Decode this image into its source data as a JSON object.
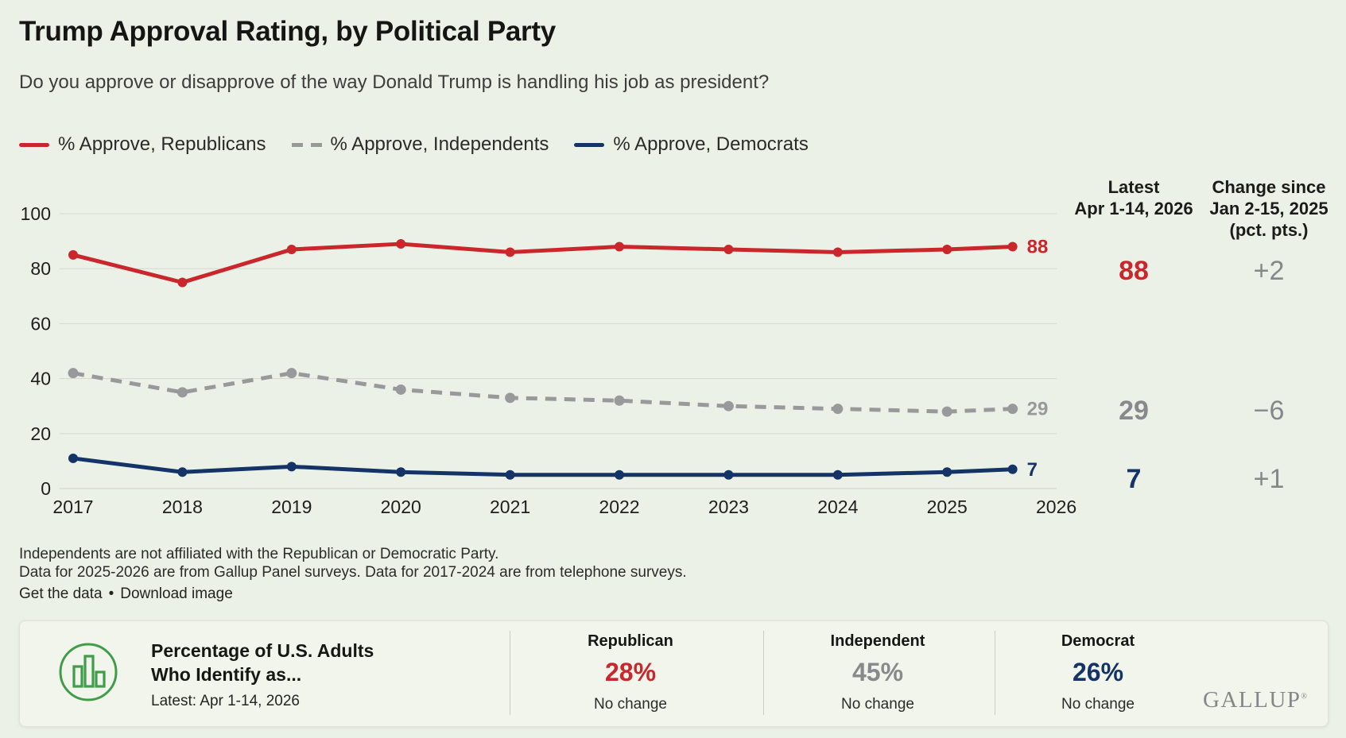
{
  "title": "Trump Approval Rating, by Political Party",
  "subtitle": "Do you approve or disapprove of the way Donald Trump is handling his job as president?",
  "legend": [
    {
      "label": "% Approve, Republicans",
      "color": "#c9272b",
      "style": "solid"
    },
    {
      "label": "% Approve, Independents",
      "color": "#97999b",
      "style": "dashed"
    },
    {
      "label": "% Approve, Democrats",
      "color": "#143467",
      "style": "solid"
    }
  ],
  "chart_data": {
    "type": "line",
    "x_ticks": [
      "2017",
      "2018",
      "2019",
      "2020",
      "2021",
      "2022",
      "2023",
      "2024",
      "2025",
      "2026"
    ],
    "x": [
      2017,
      2018,
      2019,
      2020,
      2021,
      2022,
      2023,
      2024,
      2025,
      2026
    ],
    "last_point_plot_x": 2025.6,
    "series": [
      {
        "name": "% Approve, Republicans",
        "color": "#c9272b",
        "dash": false,
        "values": [
          85,
          75,
          87,
          89,
          86,
          88,
          87,
          86,
          87,
          88
        ],
        "end_label": "88"
      },
      {
        "name": "% Approve, Independents",
        "color": "#97999b",
        "dash": true,
        "values": [
          42,
          35,
          42,
          36,
          33,
          32,
          30,
          29,
          28,
          29
        ],
        "end_label": "29"
      },
      {
        "name": "% Approve, Democrats",
        "color": "#143467",
        "dash": false,
        "values": [
          11,
          6,
          8,
          6,
          5,
          5,
          5,
          5,
          6,
          7
        ],
        "end_label": "7"
      }
    ],
    "ylim": [
      0,
      100
    ],
    "yticks": [
      0,
      20,
      40,
      60,
      80,
      100
    ],
    "grid": true,
    "legend_position": "top",
    "grid_color": "#d6dbcf",
    "axis_text_color": "#1e1e1c"
  },
  "stats": {
    "latest": {
      "header_line1": "Latest",
      "header_line2": "Apr 1-14, 2026",
      "republican": "88",
      "independent": "29",
      "democrat": "7"
    },
    "change": {
      "header_line1": "Change since",
      "header_line2": "Jan 2-15, 2025",
      "header_line3": "(pct. pts.)",
      "republican": "+2",
      "independent": "−6",
      "democrat": "+1"
    }
  },
  "footnotes": [
    "Independents are not affiliated with the Republican or Democratic Party.",
    "Data for 2025-2026 are from Gallup Panel surveys. Data for 2017-2024 are from telephone surveys."
  ],
  "links": {
    "get_data": "Get the data",
    "separator": "•",
    "download": "Download image"
  },
  "party_id_card": {
    "icon": "bar-chart-icon",
    "icon_color": "#3f9d4a",
    "title_line1": "Percentage of U.S. Adults",
    "title_line2": "Who Identify as...",
    "latest_label": "Latest: Apr 1-14, 2026",
    "columns": [
      {
        "party": "Republican",
        "value": "28%",
        "color": "#c9272b",
        "change": "No change"
      },
      {
        "party": "Independent",
        "value": "45%",
        "color": "#87898c",
        "change": "No change"
      },
      {
        "party": "Democrat",
        "value": "26%",
        "color": "#143467",
        "change": "No change"
      }
    ],
    "logo_text": "GALLUP"
  }
}
